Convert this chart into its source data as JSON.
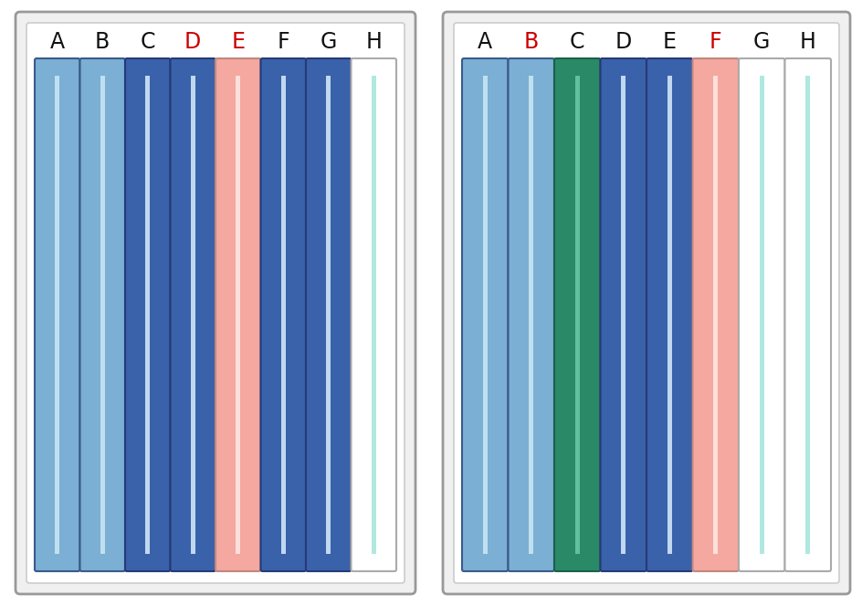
{
  "reservoirs": [
    {
      "labels": [
        "A",
        "B",
        "C",
        "D",
        "E",
        "F",
        "G",
        "H"
      ],
      "label_colors": [
        "#111111",
        "#111111",
        "#111111",
        "#cc0000",
        "#cc0000",
        "#111111",
        "#111111",
        "#111111"
      ],
      "colors": [
        "#7bafd4",
        "#7bafd4",
        "#3a62aa",
        "#3a62aa",
        "#f4a8a0",
        "#3a62aa",
        "#3a62aa",
        "#ffffff"
      ],
      "stripe_colors": [
        "#c0e0f0",
        "#c0e0f0",
        "#c0d8f0",
        "#c0d8f0",
        "#fce0dc",
        "#c0d8f0",
        "#c0d8f0",
        "#b0e8e0"
      ],
      "border_colors": [
        "#3a5a8a",
        "#3a5a8a",
        "#253a78",
        "#253a78",
        "#c08880",
        "#253a78",
        "#253a78",
        "#aaaaaa"
      ]
    },
    {
      "labels": [
        "A",
        "B",
        "C",
        "D",
        "E",
        "F",
        "G",
        "H"
      ],
      "label_colors": [
        "#111111",
        "#cc0000",
        "#111111",
        "#111111",
        "#111111",
        "#cc0000",
        "#111111",
        "#111111"
      ],
      "colors": [
        "#7bafd4",
        "#7bafd4",
        "#2a8a68",
        "#3a62aa",
        "#3a62aa",
        "#f4a8a0",
        "#ffffff",
        "#ffffff"
      ],
      "stripe_colors": [
        "#c0e0f0",
        "#c0e0f0",
        "#60c0a0",
        "#c0d8f0",
        "#c0d8f0",
        "#fce0dc",
        "#b0e8e0",
        "#b0e8e0"
      ],
      "border_colors": [
        "#3a5a8a",
        "#3a5a8a",
        "#1a6048",
        "#253a78",
        "#253a78",
        "#c08880",
        "#aaaaaa",
        "#aaaaaa"
      ]
    }
  ],
  "fig_bg": "#ffffff",
  "outer_box_color": "#aaaaaa",
  "inner_box_color": "#cccccc",
  "label_fontsize": 17
}
